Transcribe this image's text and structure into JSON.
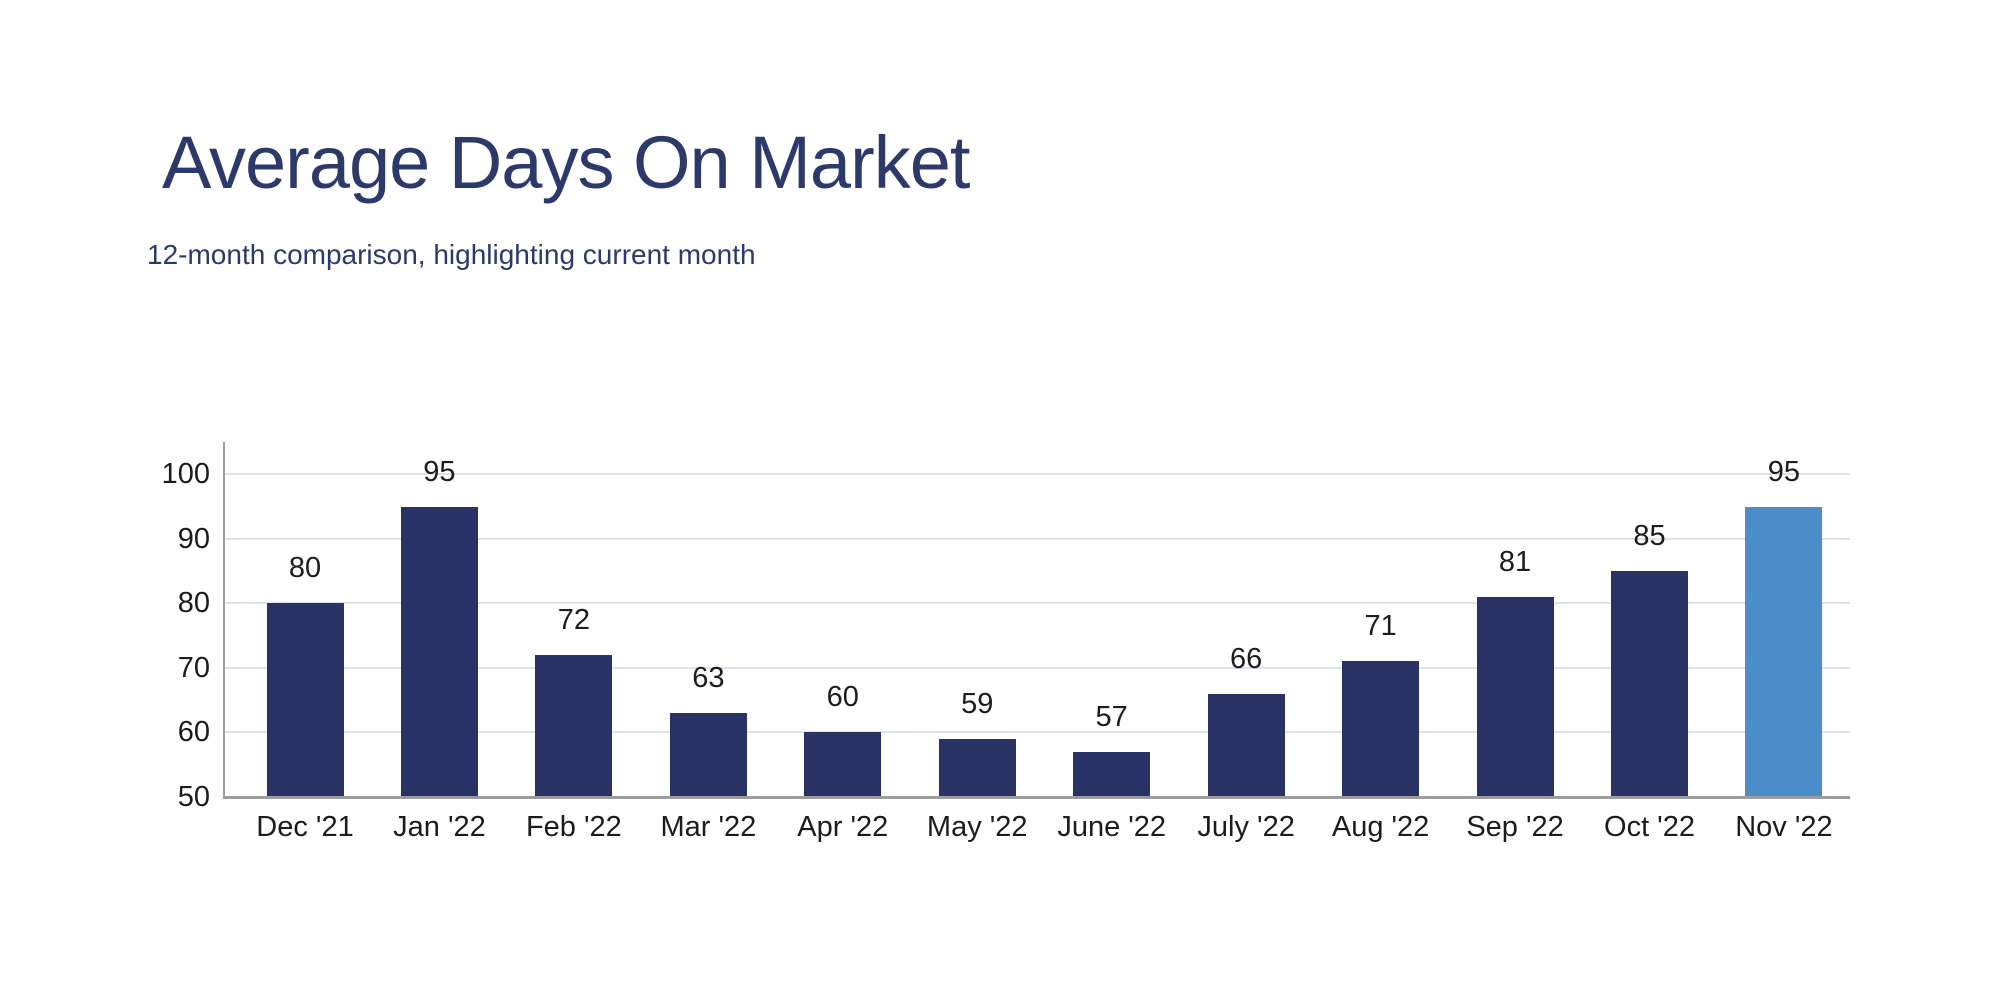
{
  "page": {
    "background_color": "#ffffff"
  },
  "header": {
    "title": "Average Days On Market",
    "subtitle": "12-month comparison, highlighting current month",
    "title_color": "#2c3a6b",
    "subtitle_color": "#2c3a6b"
  },
  "chart_data": {
    "type": "bar",
    "title": "Average Days On Market",
    "subtitle": "12-month comparison, highlighting current month",
    "categories": [
      "Dec '21",
      "Jan '22",
      "Feb '22",
      "Mar '22",
      "Apr '22",
      "May '22",
      "June '22",
      "July '22",
      "Aug '22",
      "Sep '22",
      "Oct '22",
      "Nov '22"
    ],
    "values": [
      80,
      95,
      72,
      63,
      60,
      59,
      57,
      66,
      71,
      81,
      85,
      95
    ],
    "data_labels": [
      80,
      95,
      72,
      63,
      60,
      59,
      57,
      66,
      71,
      81,
      85,
      95
    ],
    "highlighted_category": "Nov '22",
    "highlight_index": 11,
    "xlabel": "",
    "ylabel": "",
    "ylim": [
      50,
      105
    ],
    "yticks": [
      50,
      60,
      70,
      80,
      90,
      100
    ],
    "grid": true,
    "legend_position": "none",
    "colors": {
      "bar": "#293264",
      "bar_highlight": "#4a8dc8",
      "gridline": "#dbe3ee",
      "axis": "#9c9c9c",
      "tick_label": "#1c1c1c",
      "value_label": "#1c1c1c"
    }
  }
}
